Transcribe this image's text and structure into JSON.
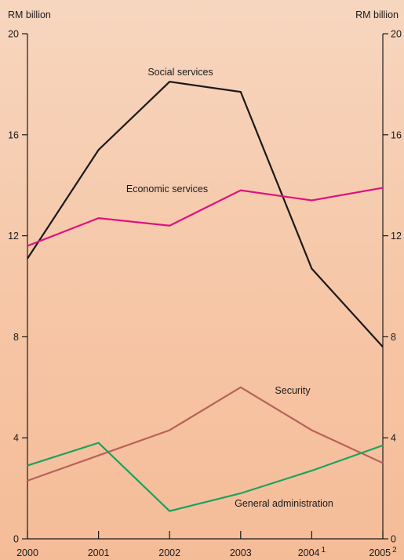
{
  "chart_data": {
    "type": "line",
    "x": [
      "2000",
      "2001",
      "2002",
      "2003",
      "2004",
      "2005"
    ],
    "x_superscripts": [
      "",
      "",
      "",
      "",
      "1",
      "2"
    ],
    "ylabel_left": "RM billion",
    "ylabel_right": "RM billion",
    "ylim": [
      0,
      20
    ],
    "yticks": [
      0,
      4,
      8,
      12,
      16,
      20
    ],
    "grid": false,
    "series": [
      {
        "name": "Social services",
        "color": "#1a1a1a",
        "values": [
          11.1,
          15.4,
          18.1,
          17.7,
          10.7,
          7.6
        ]
      },
      {
        "name": "Economic services",
        "color": "#e0117f",
        "values": [
          11.6,
          12.7,
          12.4,
          13.8,
          13.4,
          13.9
        ]
      },
      {
        "name": "Security",
        "color": "#b8625a",
        "values": [
          2.3,
          3.3,
          4.3,
          6.0,
          4.3,
          3.0
        ]
      },
      {
        "name": "General administration",
        "color": "#1aa35e",
        "values": [
          2.9,
          3.8,
          1.1,
          1.8,
          2.7,
          3.7
        ]
      }
    ]
  }
}
